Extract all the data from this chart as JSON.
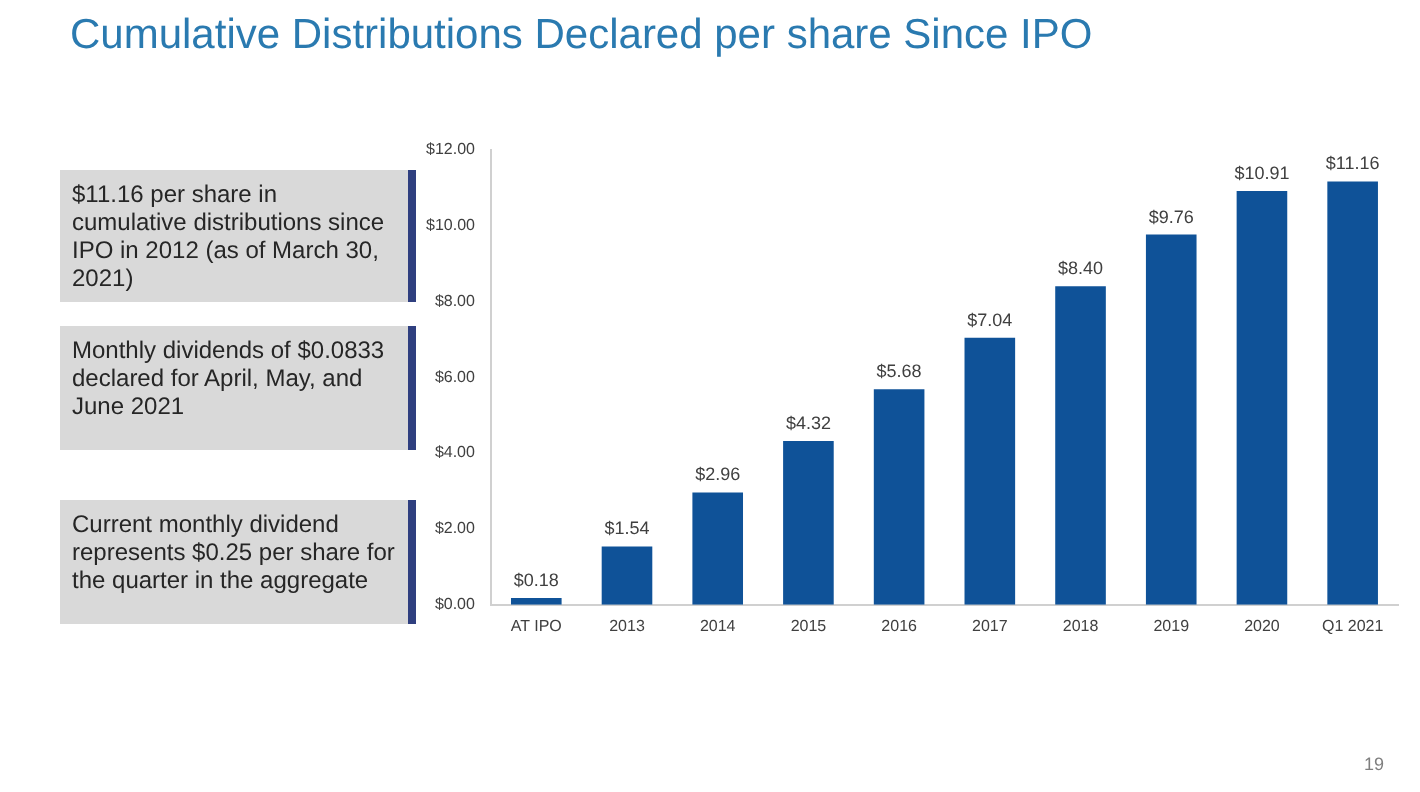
{
  "chart_data": {
    "type": "bar",
    "title": "Cumulative Distributions Declared per share Since IPO",
    "categories": [
      "AT IPO",
      "2013",
      "2014",
      "2015",
      "2016",
      "2017",
      "2018",
      "2019",
      "2020",
      "Q1 2021"
    ],
    "values": [
      0.18,
      1.54,
      2.96,
      4.32,
      5.68,
      7.04,
      8.4,
      9.76,
      10.91,
      11.16
    ],
    "value_labels": [
      "$0.18",
      "$1.54",
      "$2.96",
      "$4.32",
      "$5.68",
      "$7.04",
      "$8.40",
      "$9.76",
      "$10.91",
      "$11.16"
    ],
    "color": "#0f5298",
    "ylim": [
      0,
      12
    ],
    "yticks": [
      {
        "value": 0,
        "label": "$0.00"
      },
      {
        "value": 2,
        "label": "$2.00"
      },
      {
        "value": 4,
        "label": "$4.00"
      },
      {
        "value": 6,
        "label": "$6.00"
      },
      {
        "value": 8,
        "label": "$8.00"
      },
      {
        "value": 10,
        "label": "$10.00"
      },
      {
        "value": 12,
        "label": "$12.00"
      }
    ],
    "grid": false,
    "legend": false,
    "annotations": [
      "$11.16 per share in cumulative distributions since IPO in 2012 (as of March 30, 2021)",
      "Monthly dividends of $0.0833 declared for April, May, and June 2021",
      "Current monthly dividend represents $0.25 per share for the quarter in the aggregate",
      "19"
    ]
  }
}
